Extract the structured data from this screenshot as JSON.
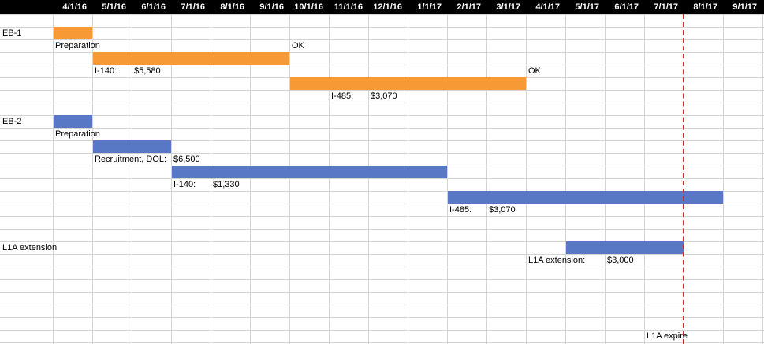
{
  "chart_data": {
    "type": "gantt",
    "timeline": [
      "4/1/16",
      "5/1/16",
      "6/1/16",
      "7/1/16",
      "8/1/16",
      "9/1/16",
      "10/1/16",
      "11/1/16",
      "12/1/16",
      "1/1/17",
      "2/1/17",
      "3/1/17",
      "4/1/17",
      "5/1/17",
      "6/1/17",
      "7/1/17",
      "8/1/17",
      "9/1/17"
    ],
    "colors": {
      "eb1": "#f79a35",
      "eb2": "#5878c6",
      "l1a": "#5878c6",
      "expire_line": "#c0302b"
    },
    "bars": [
      {
        "group": "eb1",
        "row": 2,
        "start": "4/1/16",
        "end": "5/1/16"
      },
      {
        "group": "eb1",
        "row": 4,
        "start": "5/1/16",
        "end": "10/1/16"
      },
      {
        "group": "eb1",
        "row": 6,
        "start": "10/1/16",
        "end": "4/1/17"
      },
      {
        "group": "eb2",
        "row": 9,
        "start": "4/1/16",
        "end": "5/1/16"
      },
      {
        "group": "eb2",
        "row": 11,
        "start": "5/1/16",
        "end": "7/1/16"
      },
      {
        "group": "eb2",
        "row": 13,
        "start": "7/1/16",
        "end": "2/1/17"
      },
      {
        "group": "eb2",
        "row": 15,
        "start": "2/1/17",
        "end": "9/1/17"
      },
      {
        "group": "l1a",
        "row": 19,
        "start": "5/1/17",
        "end": "8/1/17"
      }
    ],
    "expire_date": "8/1/17",
    "labels": [
      {
        "row": 2,
        "col": 0,
        "text": "EB-1"
      },
      {
        "row": 3,
        "col": 1,
        "text": "Preparation"
      },
      {
        "row": 3,
        "col": 7,
        "text": "OK"
      },
      {
        "row": 5,
        "col": 2,
        "text": "I-140:"
      },
      {
        "row": 5,
        "col": 3,
        "text": "$5,580"
      },
      {
        "row": 5,
        "col": 13,
        "text": "OK"
      },
      {
        "row": 7,
        "col": 8,
        "text": "I-485:"
      },
      {
        "row": 7,
        "col": 9,
        "text": "$3,070"
      },
      {
        "row": 9,
        "col": 0,
        "text": "EB-2"
      },
      {
        "row": 10,
        "col": 1,
        "text": "Preparation"
      },
      {
        "row": 12,
        "col": 2,
        "text": "Recruitment, DOL:"
      },
      {
        "row": 12,
        "col": 4,
        "text": "$6,500"
      },
      {
        "row": 14,
        "col": 4,
        "text": "I-140:"
      },
      {
        "row": 14,
        "col": 5,
        "text": "$1,330"
      },
      {
        "row": 16,
        "col": 11,
        "text": "I-485:"
      },
      {
        "row": 16,
        "col": 12,
        "text": "$3,070"
      },
      {
        "row": 19,
        "col": 0,
        "text": "L1A extension"
      },
      {
        "row": 20,
        "col": 13,
        "text": "L1A extension:"
      },
      {
        "row": 20,
        "col": 15,
        "text": "$3,000"
      },
      {
        "row": 26,
        "col": 16,
        "text": "L1A expire"
      }
    ]
  }
}
